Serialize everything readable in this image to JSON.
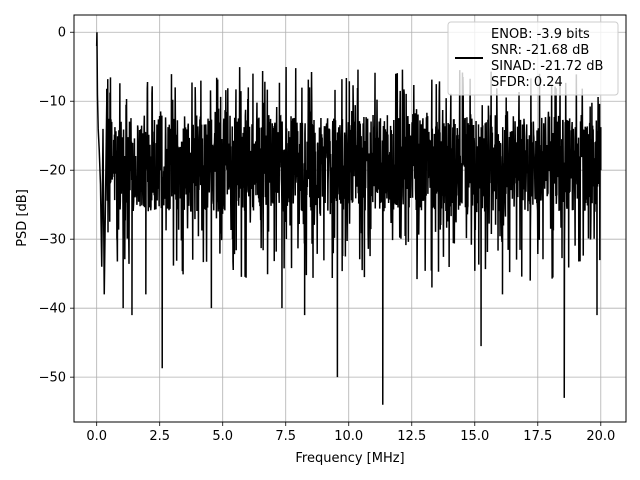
{
  "chart_data": {
    "type": "line",
    "xlabel": "Frequency [MHz]",
    "ylabel": "PSD [dB]",
    "xlim": [
      -0.9,
      21.0
    ],
    "ylim": [
      -56.5,
      2.5
    ],
    "xticks": [
      0.0,
      2.5,
      5.0,
      7.5,
      10.0,
      12.5,
      15.0,
      17.5,
      20.0
    ],
    "xtick_labels": [
      "0.0",
      "2.5",
      "5.0",
      "7.5",
      "10.0",
      "12.5",
      "15.0",
      "17.5",
      "20.0"
    ],
    "yticks": [
      0,
      -10,
      -20,
      -30,
      -40,
      -50
    ],
    "ytick_labels": [
      "0",
      "−10",
      "−20",
      "−30",
      "−40",
      "−50"
    ],
    "grid": true,
    "legend_position": "top-right",
    "legend_lines": [
      "ENOB: -3.9 bits",
      "SNR: -21.68 dB",
      "SINAD: -21.72 dB",
      "SFDR: 0.24"
    ],
    "line_color": "#000000",
    "noise_floor_db": [
      -26,
      -12
    ],
    "series": [
      {
        "x": [
          0.0,
          0.01,
          0.03,
          0.06,
          0.1,
          0.15,
          0.2,
          0.25,
          0.3,
          0.4,
          1.05,
          1.4,
          1.95,
          2.6,
          4.55,
          6.2,
          7.35,
          8.25,
          9.55,
          11.35,
          13.3,
          15.25,
          16.1,
          17.2,
          18.55,
          19.85,
          20.0
        ],
        "values": [
          -2,
          0,
          -9,
          -14,
          -17,
          -22,
          -34,
          -14,
          -38,
          -10,
          -40,
          -41,
          -38,
          -48.7,
          -40,
          -6,
          -40,
          -41,
          -50,
          -54,
          -37,
          -45.5,
          -38,
          -36,
          -53,
          -41,
          -20
        ]
      }
    ]
  }
}
